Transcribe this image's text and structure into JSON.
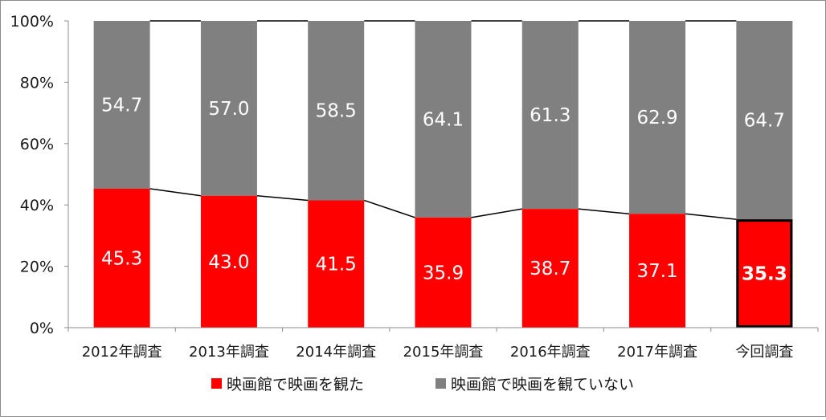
{
  "chart_data": {
    "type": "bar",
    "stacked": true,
    "percent_stacked": true,
    "categories": [
      "2012年調査",
      "2013年調査",
      "2014年調査",
      "2015年調査",
      "2016年調査",
      "2017年調査",
      "今回調査"
    ],
    "series": [
      {
        "name": "映画館で映画を観た",
        "color": "#ff0000",
        "values": [
          45.3,
          43.0,
          41.5,
          35.9,
          38.7,
          37.1,
          35.3
        ]
      },
      {
        "name": "映画館で映画を観ていない",
        "color": "#808080",
        "values": [
          54.7,
          57.0,
          58.5,
          64.1,
          61.3,
          62.9,
          64.7
        ]
      }
    ],
    "title": "",
    "xlabel": "",
    "ylabel": "",
    "ylim": [
      0,
      100
    ],
    "yticks": [
      "0%",
      "20%",
      "40%",
      "60%",
      "80%",
      "100%"
    ],
    "grid": false,
    "legend": "bottom",
    "series_lines": true,
    "highlight_category": "今回調査"
  }
}
